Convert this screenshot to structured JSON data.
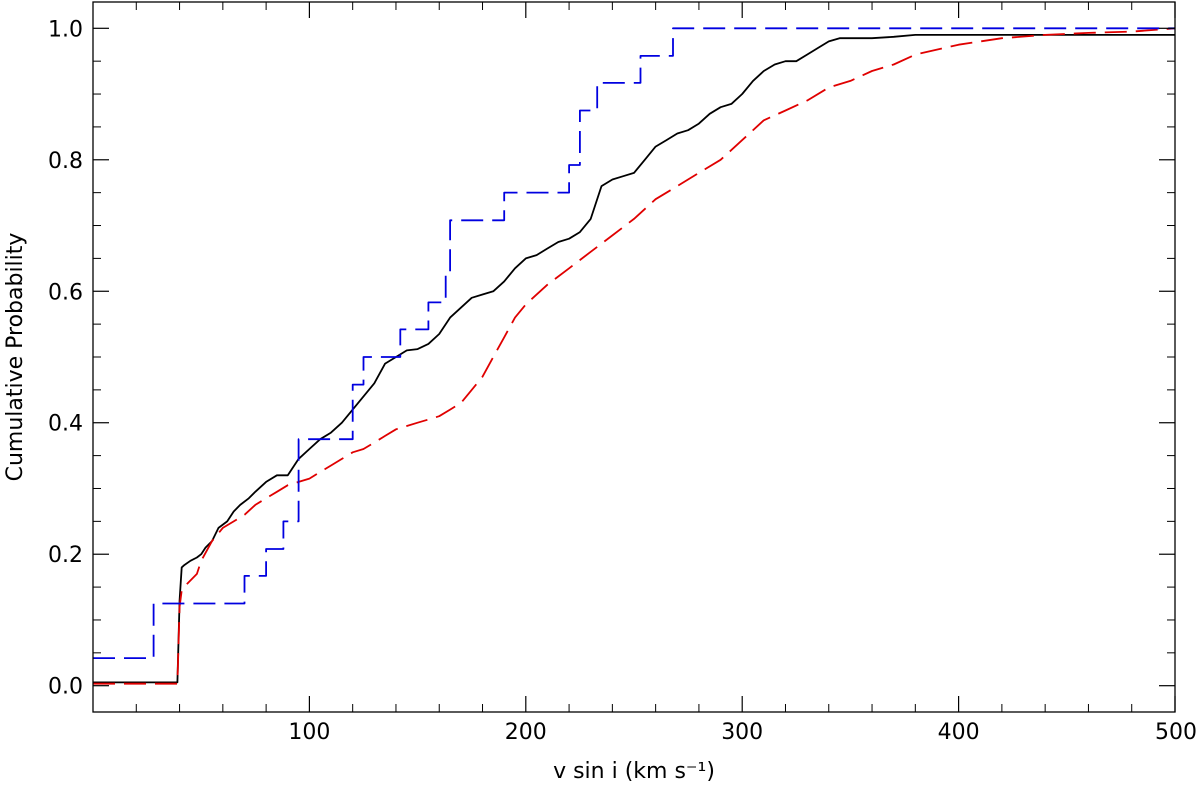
{
  "chart_data": {
    "type": "line",
    "title": "",
    "xlabel": "v sin i (km s⁻¹)",
    "ylabel": "Cumulative Probability",
    "xlim": [
      0,
      500
    ],
    "ylim": [
      -0.04,
      1.04
    ],
    "x_ticks": [
      100,
      200,
      300,
      400,
      500
    ],
    "x_tick_labels": [
      "100",
      "200",
      "300",
      "400",
      "500"
    ],
    "y_ticks": [
      0.0,
      0.2,
      0.4,
      0.6,
      0.8,
      1.0
    ],
    "y_tick_labels": [
      "0.0",
      "0.2",
      "0.4",
      "0.6",
      "0.8",
      "1.0"
    ],
    "grid": false,
    "legend": "none",
    "series": [
      {
        "color": "#000000",
        "dash": "solid",
        "x": [
          0,
          38,
          39,
          40,
          41,
          42,
          45,
          48,
          50,
          52,
          55,
          58,
          62,
          65,
          68,
          72,
          75,
          80,
          85,
          90,
          95,
          100,
          105,
          110,
          115,
          120,
          125,
          130,
          135,
          140,
          145,
          150,
          155,
          160,
          165,
          170,
          175,
          180,
          185,
          190,
          195,
          200,
          205,
          210,
          215,
          220,
          225,
          230,
          235,
          240,
          245,
          250,
          255,
          260,
          265,
          270,
          275,
          280,
          285,
          290,
          295,
          300,
          305,
          310,
          315,
          320,
          325,
          330,
          335,
          340,
          345,
          350,
          360,
          370,
          380,
          400,
          430,
          450,
          500
        ],
        "y": [
          0.005,
          0.005,
          0.005,
          0.13,
          0.18,
          0.183,
          0.19,
          0.195,
          0.2,
          0.21,
          0.22,
          0.24,
          0.25,
          0.265,
          0.275,
          0.285,
          0.295,
          0.31,
          0.32,
          0.32,
          0.345,
          0.36,
          0.375,
          0.385,
          0.4,
          0.42,
          0.44,
          0.46,
          0.49,
          0.5,
          0.51,
          0.512,
          0.52,
          0.535,
          0.56,
          0.575,
          0.59,
          0.595,
          0.6,
          0.615,
          0.635,
          0.65,
          0.655,
          0.665,
          0.675,
          0.68,
          0.69,
          0.71,
          0.76,
          0.77,
          0.775,
          0.78,
          0.8,
          0.82,
          0.83,
          0.84,
          0.845,
          0.855,
          0.87,
          0.88,
          0.885,
          0.9,
          0.92,
          0.935,
          0.945,
          0.95,
          0.95,
          0.96,
          0.97,
          0.98,
          0.985,
          0.985,
          0.985,
          0.987,
          0.99,
          0.99,
          0.99,
          0.99,
          0.99
        ]
      },
      {
        "color": "#e00000",
        "dash": "dashed",
        "x": [
          0,
          38,
          39,
          40,
          41,
          42,
          45,
          48,
          50,
          55,
          60,
          65,
          70,
          75,
          80,
          85,
          90,
          95,
          100,
          105,
          110,
          115,
          120,
          125,
          130,
          135,
          140,
          145,
          150,
          155,
          160,
          165,
          170,
          175,
          180,
          185,
          190,
          195,
          200,
          210,
          220,
          230,
          240,
          250,
          260,
          270,
          280,
          290,
          300,
          310,
          320,
          330,
          340,
          350,
          360,
          370,
          380,
          400,
          420,
          440,
          460,
          480,
          500
        ],
        "y": [
          0.003,
          0.003,
          0.003,
          0.12,
          0.145,
          0.15,
          0.16,
          0.17,
          0.19,
          0.22,
          0.24,
          0.25,
          0.26,
          0.275,
          0.285,
          0.295,
          0.305,
          0.31,
          0.315,
          0.325,
          0.335,
          0.345,
          0.355,
          0.36,
          0.37,
          0.38,
          0.39,
          0.395,
          0.4,
          0.405,
          0.41,
          0.42,
          0.43,
          0.45,
          0.47,
          0.5,
          0.53,
          0.56,
          0.58,
          0.61,
          0.635,
          0.66,
          0.685,
          0.71,
          0.74,
          0.76,
          0.78,
          0.8,
          0.83,
          0.86,
          0.875,
          0.89,
          0.91,
          0.92,
          0.935,
          0.945,
          0.96,
          0.975,
          0.985,
          0.99,
          0.993,
          0.995,
          1.0
        ]
      },
      {
        "color": "#0000e0",
        "dash": "dashed",
        "x": [
          0,
          28,
          28,
          70,
          70,
          80,
          80,
          88,
          88,
          95,
          95,
          120,
          120,
          125,
          125,
          142,
          142,
          155,
          155,
          163,
          163,
          165,
          165,
          190,
          190,
          220,
          220,
          225,
          225,
          233,
          233,
          253,
          253,
          268,
          268,
          500
        ],
        "y": [
          0.042,
          0.042,
          0.125,
          0.125,
          0.167,
          0.167,
          0.208,
          0.208,
          0.25,
          0.25,
          0.375,
          0.375,
          0.458,
          0.458,
          0.5,
          0.5,
          0.542,
          0.542,
          0.583,
          0.583,
          0.625,
          0.625,
          0.708,
          0.708,
          0.75,
          0.75,
          0.792,
          0.792,
          0.875,
          0.875,
          0.917,
          0.917,
          0.958,
          0.958,
          1.0,
          1.0
        ]
      }
    ]
  }
}
